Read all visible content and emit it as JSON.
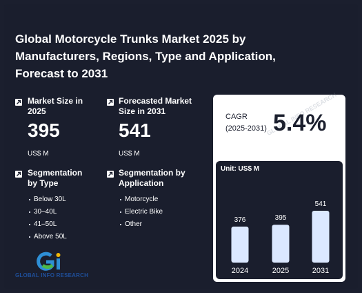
{
  "title": "Global Motorcycle Trunks Market 2025 by Manufacturers, Regions, Type and Application, Forecast to 2031",
  "market_size": {
    "label": "Market Size in 2025",
    "value": "395",
    "unit": "US$ M"
  },
  "forecast_size": {
    "label": "Forecasted Market Size in 2031",
    "value": "541",
    "unit": "US$ M"
  },
  "segmentation_type": {
    "label": "Segmentation by Type",
    "items": [
      "Below 30L",
      "30–40L",
      "41–50L",
      "Above 50L"
    ]
  },
  "segmentation_application": {
    "label": "Segmentation by Application",
    "items": [
      "Motorcycle",
      "Electric Bike",
      "Other"
    ]
  },
  "cagr": {
    "label": "CAGR",
    "period": "(2025-2031)",
    "value": "5.4%"
  },
  "logo": {
    "text": "GLOBAL INFO RESEARCH"
  },
  "watermark": "GLOBAL INFO RESEARCH",
  "colors": {
    "background": "#1a1e2d",
    "bar": "#dbe8ff",
    "card": "#ffffff"
  },
  "chart_data": {
    "type": "bar",
    "unit_label": "Unit: US$ M",
    "categories": [
      "2024",
      "2025",
      "2031"
    ],
    "values": [
      376,
      395,
      541
    ],
    "ylim": [
      0,
      541
    ],
    "grid": false
  }
}
